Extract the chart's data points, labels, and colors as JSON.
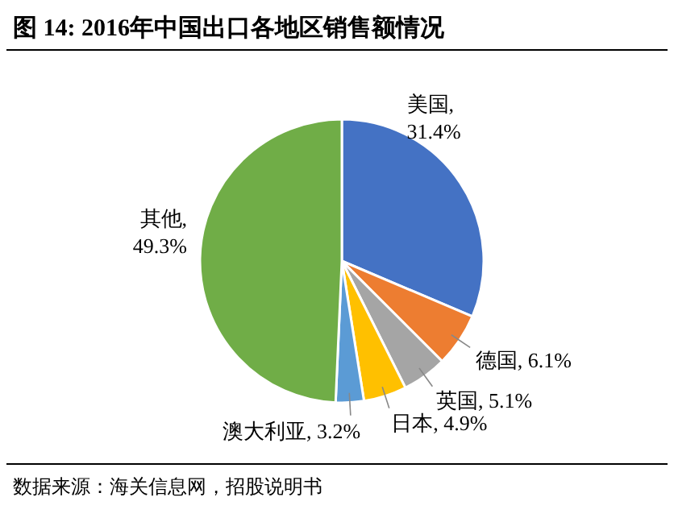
{
  "chart_data": {
    "type": "pie",
    "title": "图 14: 2016年中国出口各地区销售额情况",
    "categories": [
      "美国",
      "德国",
      "英国",
      "日本",
      "澳大利亚",
      "其他"
    ],
    "values": [
      31.4,
      6.1,
      5.1,
      4.9,
      3.2,
      49.3
    ],
    "colors": [
      "#4472c4",
      "#ed7d31",
      "#a5a5a5",
      "#ffc000",
      "#5b9bd5",
      "#70ad47"
    ],
    "value_labels": [
      ", 31.4%",
      ", 6.1%",
      ", 5.1%",
      ", 4.9%",
      ", 3.2%",
      ", 49.3%"
    ],
    "annotations": [
      "数据来源：海关信息网，招股说明书"
    ],
    "legend": false
  }
}
